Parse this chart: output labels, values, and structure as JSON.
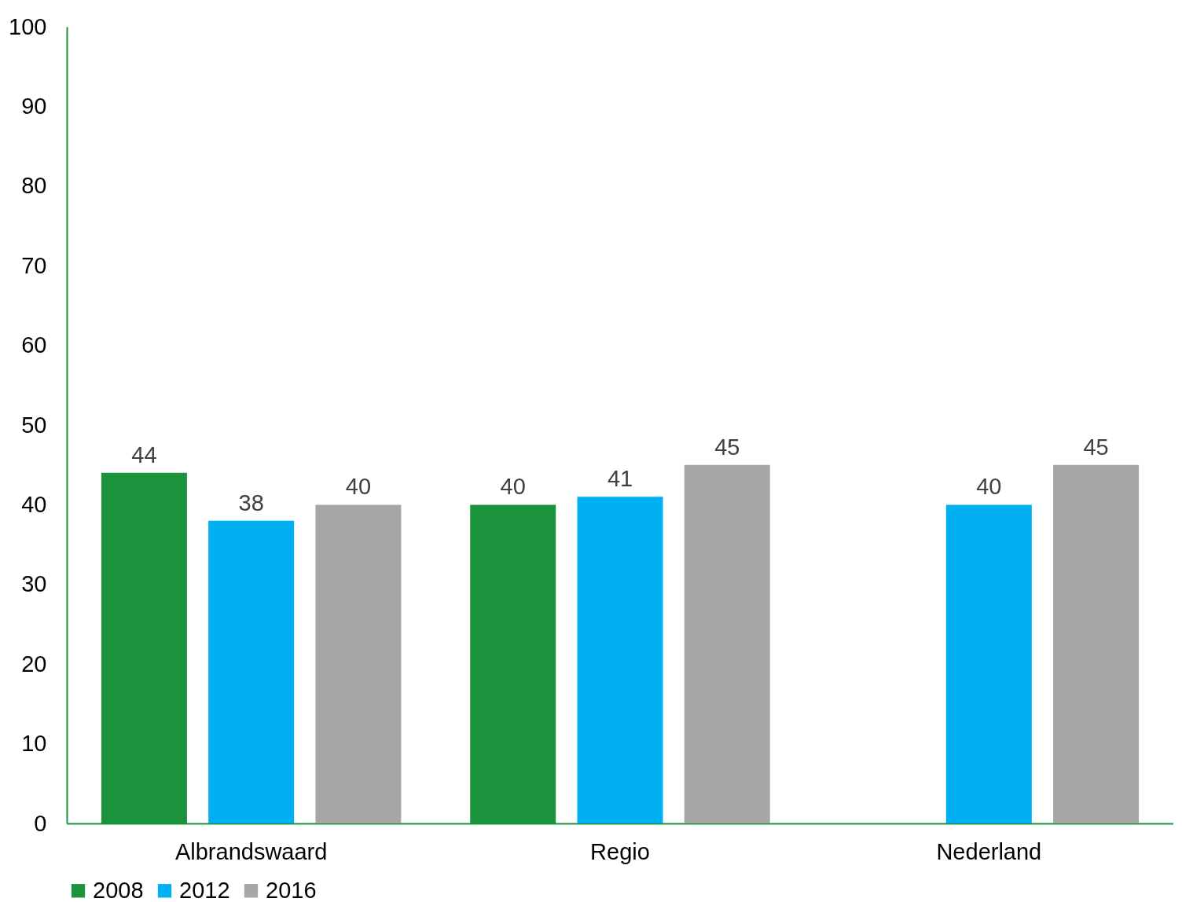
{
  "chart_data": {
    "type": "bar",
    "categories": [
      "Albrandswaard",
      "Regio",
      "Nederland"
    ],
    "series": [
      {
        "name": "2008",
        "color": "#1a933c",
        "values": [
          44,
          40,
          null
        ]
      },
      {
        "name": "2012",
        "color": "#00b0f0",
        "values": [
          38,
          41,
          40
        ]
      },
      {
        "name": "2016",
        "color": "#a6a6a6",
        "values": [
          40,
          45,
          45
        ]
      }
    ],
    "ylim": [
      0,
      100
    ],
    "yticks": [
      0,
      10,
      20,
      30,
      40,
      50,
      60,
      70,
      80,
      90,
      100
    ],
    "grid": false,
    "legend": "bottom",
    "data_labels": true
  }
}
